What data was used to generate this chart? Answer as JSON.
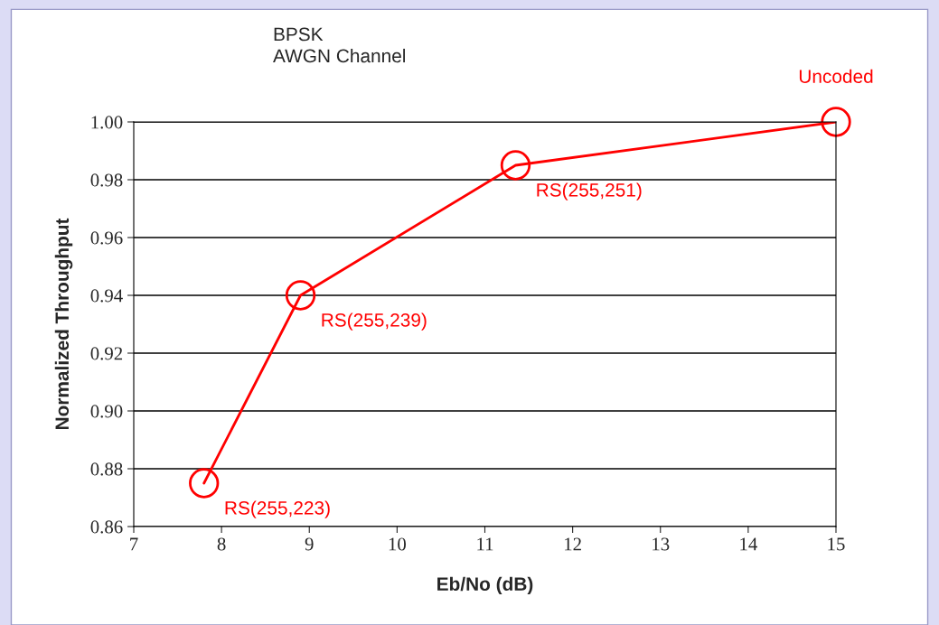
{
  "chart_data": {
    "type": "line",
    "xlabel": "Eb/No (dB)",
    "ylabel": "Normalized Throughput",
    "x": [
      7.8,
      8.9,
      11.35,
      15
    ],
    "series": [
      {
        "color": "#ff0000",
        "values": [
          0.875,
          0.94,
          0.985,
          1.0
        ]
      }
    ],
    "marker": "circle",
    "line_style": "solid",
    "grid": "y",
    "xlim": [
      7,
      15
    ],
    "xticks": [
      7,
      8,
      9,
      10,
      11,
      12,
      13,
      14,
      15
    ],
    "ylim": [
      0.86,
      1.0
    ],
    "yticks": [
      {
        "value": 0.86,
        "label": "0.86"
      },
      {
        "value": 0.88,
        "label": "0.88"
      },
      {
        "value": 0.9,
        "label": "0.90"
      },
      {
        "value": 0.92,
        "label": "0.92"
      },
      {
        "value": 0.94,
        "label": "0.94"
      },
      {
        "value": 0.96,
        "label": "0.96"
      },
      {
        "value": 0.98,
        "label": "0.98"
      },
      {
        "value": 1.0,
        "label": "1.00"
      }
    ],
    "annotations": [
      "BPSK\nAWGN Channel",
      {
        "text": "RS(255,223)",
        "x": 7.8,
        "y": 0.875
      },
      {
        "text": "RS(255,239)",
        "x": 8.9,
        "y": 0.94
      },
      {
        "text": "RS(255,251)",
        "x": 11.35,
        "y": 0.985
      },
      {
        "text": "Uncoded",
        "x": 15,
        "y": 1.0
      }
    ]
  }
}
